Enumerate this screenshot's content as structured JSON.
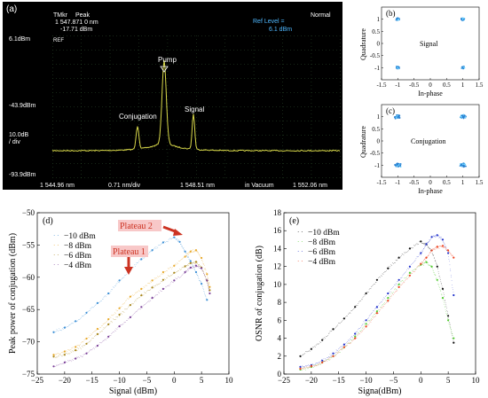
{
  "panel_a": {
    "label": "(a)",
    "marker_label": "TMkr",
    "marker_peak_label": "Peak",
    "marker_wavelength": "1 547.871 0   nm",
    "marker_power": "-17.71   dBm",
    "mode": "Normal",
    "ref_level_label": "Ref Level =",
    "ref_level_value": "6.1 dBm",
    "ref_tag": "REF",
    "y_top": "6.1dBm",
    "y_mid": "-43.9dBm",
    "y_scale_1": "10.0dB",
    "y_scale_2": "/ div",
    "y_bottom": "-93.9dBm",
    "x_start": "1 544.96 nm",
    "x_res": "0.71 nm/div",
    "x_center": "1 548.51 nm",
    "x_medium": "in Vacuum",
    "x_end": "1 552.06 nm",
    "peak_labels": [
      "Conjugation",
      "Pump",
      "Signal"
    ],
    "trace_color": "#d8d84a",
    "screen_color": "#000000"
  },
  "panel_b": {
    "label": "(b)",
    "title": "Signal",
    "xlabel": "In-phase",
    "ylabel": "Quadrature",
    "xticks": [
      "-1.5",
      "-1",
      "-0.5",
      "0",
      "0.5",
      "1",
      "1.5"
    ],
    "yticks": [
      "1",
      "0.5",
      "0",
      "-0.5",
      "-1"
    ]
  },
  "panel_c": {
    "label": "(c)",
    "title": "Conjugation",
    "xlabel": "In-phase",
    "ylabel": "Quadrature",
    "xticks": [
      "-1.5",
      "-1",
      "-0.5",
      "0",
      "0.5",
      "1",
      "1.5"
    ],
    "yticks": [
      "1",
      "0.5",
      "0",
      "-0.5",
      "-1"
    ]
  },
  "panel_d": {
    "label": "(d)",
    "annotations": [
      "Plateau 2",
      "Plateau 1"
    ],
    "annotation_color": "#cc3322"
  },
  "panel_e": {
    "label": "(e)"
  },
  "chart_data": [
    {
      "type": "scatter",
      "panel": "(d)",
      "xlabel": "Signal (dBm)",
      "ylabel": "Peak power of conjugation (dBm)",
      "xlim": [
        -25,
        10
      ],
      "ylim": [
        -75,
        -50
      ],
      "xticks": [
        -25,
        -20,
        -15,
        -10,
        -5,
        0,
        5,
        10
      ],
      "yticks": [
        -75,
        -70,
        -65,
        -60,
        -55,
        -50
      ],
      "legend_position": "top-left",
      "series": [
        {
          "name": "−10 dBm",
          "color": "#3b8fd6",
          "x": [
            -22,
            -20,
            -18,
            -16,
            -14,
            -12,
            -10,
            -8,
            -6,
            -4,
            -2,
            0,
            1,
            2,
            3,
            4,
            5,
            6
          ],
          "y": [
            -68.5,
            -67.8,
            -66.8,
            -65.5,
            -64.0,
            -62.5,
            -60.5,
            -58.8,
            -57.2,
            -55.8,
            -54.6,
            -53.8,
            -54.5,
            -56.0,
            -57.5,
            -59.2,
            -61.0,
            -63.5
          ]
        },
        {
          "name": "−8 dBm",
          "color": "#e8a92a",
          "x": [
            -22,
            -20,
            -18,
            -16,
            -14,
            -12,
            -10,
            -8,
            -6,
            -4,
            -2,
            0,
            2,
            3,
            4,
            5,
            6,
            6.5
          ],
          "y": [
            -72.0,
            -71.5,
            -70.8,
            -69.5,
            -68.0,
            -66.5,
            -64.8,
            -63.0,
            -61.8,
            -60.5,
            -59.2,
            -58.2,
            -56.8,
            -56.0,
            -55.8,
            -57.0,
            -59.5,
            -61.5
          ]
        },
        {
          "name": "−6 dBm",
          "color": "#a8861a",
          "x": [
            -22,
            -20,
            -18,
            -16,
            -14,
            -12,
            -10,
            -8,
            -6,
            -4,
            -2,
            0,
            2,
            3,
            4,
            5,
            6,
            6.5
          ],
          "y": [
            -72.3,
            -72.0,
            -71.3,
            -70.3,
            -68.8,
            -67.3,
            -65.8,
            -64.3,
            -62.8,
            -61.6,
            -60.4,
            -59.3,
            -58.3,
            -57.8,
            -57.6,
            -58.5,
            -60.5,
            -62.0
          ]
        },
        {
          "name": "−4 dBm",
          "color": "#7a3f98",
          "x": [
            -22,
            -20,
            -18,
            -16,
            -14,
            -12,
            -10,
            -8,
            -6,
            -4,
            -2,
            0,
            2,
            3,
            4,
            5,
            6,
            6.5
          ],
          "y": [
            -73.8,
            -73.2,
            -72.6,
            -71.8,
            -70.6,
            -69.2,
            -67.6,
            -66.2,
            -64.6,
            -63.2,
            -61.8,
            -60.5,
            -59.2,
            -58.5,
            -58.2,
            -58.6,
            -60.5,
            -62.5
          ]
        }
      ]
    },
    {
      "type": "scatter",
      "panel": "(e)",
      "xlabel": "Signa(dBm)",
      "ylabel": "OSNR of conjugation (dB)",
      "xlim": [
        -25,
        10
      ],
      "ylim": [
        0,
        18
      ],
      "xticks": [
        -25,
        -20,
        -15,
        -10,
        -5,
        0,
        5,
        10
      ],
      "yticks": [
        0,
        2,
        4,
        6,
        8,
        10,
        12,
        14,
        16,
        18
      ],
      "legend_position": "top-left",
      "series": [
        {
          "name": "−10 dBm",
          "color": "#111111",
          "x": [
            -22,
            -20,
            -18,
            -16,
            -14,
            -12,
            -10,
            -8,
            -6,
            -4,
            -2,
            0,
            1,
            2,
            3,
            4,
            5,
            6
          ],
          "y": [
            2.0,
            2.8,
            3.8,
            5.0,
            6.2,
            7.5,
            9.0,
            10.5,
            11.8,
            13.0,
            14.0,
            14.8,
            14.5,
            13.8,
            12.0,
            9.5,
            6.5,
            3.5
          ]
        },
        {
          "name": "−8 dBm",
          "color": "#55cc33",
          "x": [
            -22,
            -20,
            -18,
            -16,
            -14,
            -12,
            -10,
            -8,
            -6,
            -4,
            -2,
            0,
            1,
            2,
            3,
            4,
            5,
            6
          ],
          "y": [
            0.5,
            0.8,
            1.3,
            2.0,
            3.0,
            4.2,
            5.6,
            7.0,
            8.5,
            10.0,
            11.3,
            12.2,
            12.5,
            12.0,
            10.5,
            8.5,
            6.0,
            4.0
          ]
        },
        {
          "name": "−6 dBm",
          "color": "#2233cc",
          "x": [
            -22,
            -20,
            -18,
            -16,
            -14,
            -12,
            -10,
            -8,
            -6,
            -4,
            -2,
            0,
            1,
            2,
            3,
            4,
            5,
            6
          ],
          "y": [
            0.8,
            1.0,
            1.5,
            2.3,
            3.3,
            4.5,
            6.0,
            7.5,
            9.0,
            10.5,
            12.0,
            13.5,
            14.5,
            15.3,
            15.5,
            15.0,
            13.5,
            8.8
          ]
        },
        {
          "name": "−4 dBm",
          "color": "#ee4422",
          "x": [
            -22,
            -20,
            -18,
            -16,
            -14,
            -12,
            -10,
            -8,
            -6,
            -4,
            -2,
            0,
            1,
            2,
            3,
            4,
            5,
            6
          ],
          "y": [
            0.6,
            0.9,
            1.3,
            2.0,
            3.0,
            4.0,
            5.3,
            6.8,
            8.2,
            9.7,
            11.0,
            12.3,
            13.0,
            13.8,
            14.2,
            14.3,
            13.8,
            13.0
          ]
        }
      ]
    }
  ]
}
